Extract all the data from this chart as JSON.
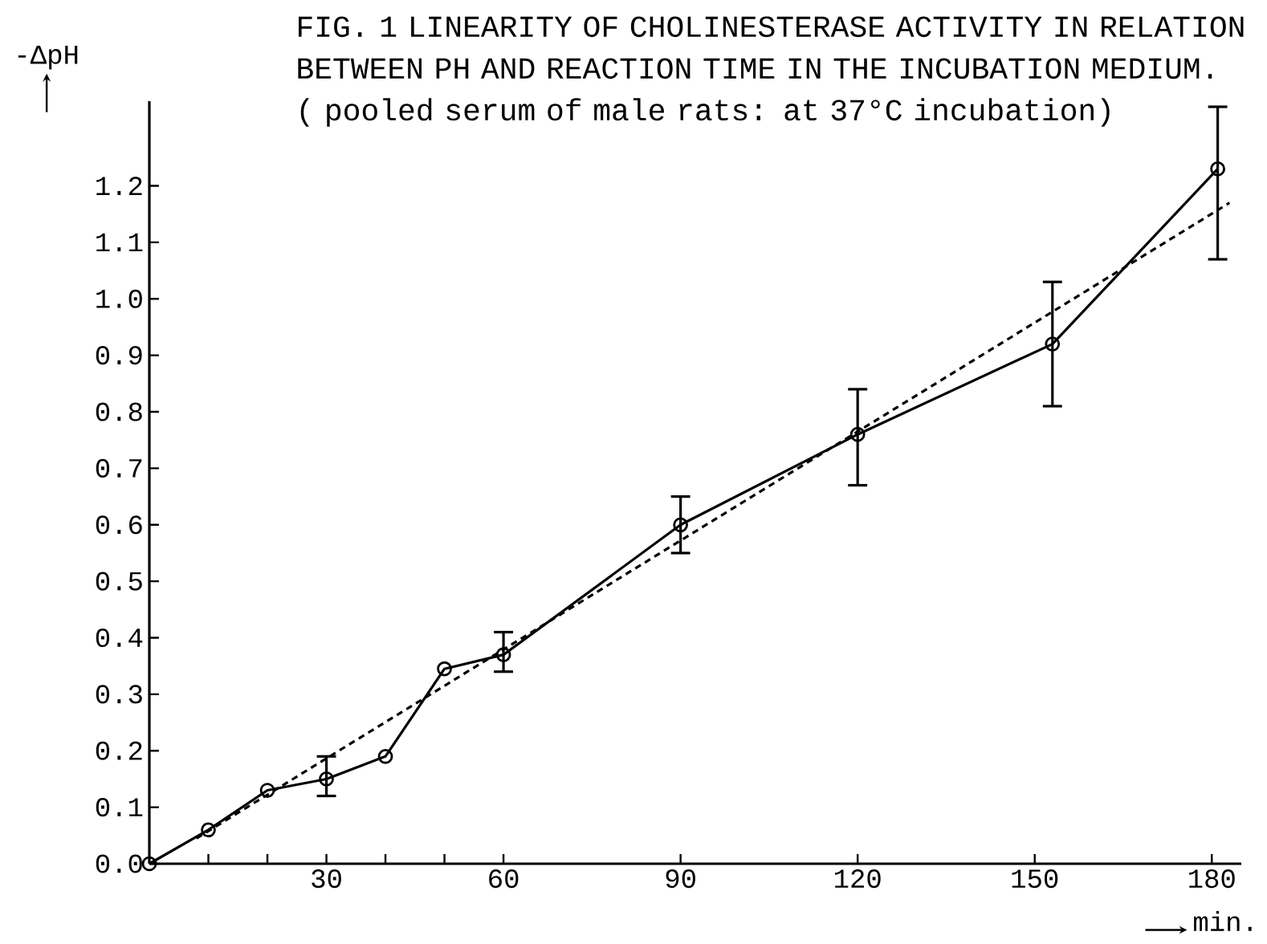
{
  "chart_data": {
    "type": "line",
    "title": "FIG. 1 LINEARITY OF CHOLINESTERASE ACTIVITY IN RELATION BETWEEN PH AND REACTION TIME IN THE INCUBATION MEDIUM.",
    "subtitle": "( pooled serum of male rats: at 37°C incubation)",
    "xlabel": "min.",
    "ylabel": "-ΔpH",
    "xlim": [
      0,
      185
    ],
    "ylim": [
      0,
      1.35
    ],
    "xticks": [
      {
        "value": 10,
        "label": null
      },
      {
        "value": 20,
        "label": null
      },
      30,
      {
        "value": 40,
        "label": null
      },
      {
        "value": 50,
        "label": null
      },
      60,
      90,
      120,
      150,
      180
    ],
    "yticks": [
      {
        "value": 0,
        "label": "0.0"
      },
      0.1,
      0.2,
      0.3,
      0.4,
      0.5,
      0.6,
      0.7,
      0.8,
      0.9,
      {
        "value": 1,
        "label": "1.0"
      },
      1.1,
      1.2
    ],
    "marker": "circle",
    "line_style": "solid",
    "series": [
      {
        "x": [
          0,
          10,
          20,
          30,
          40,
          50,
          60,
          90,
          120,
          153,
          181
        ],
        "values": [
          0,
          0.06,
          0.13,
          0.15,
          0.19,
          0.345,
          0.37,
          0.6,
          0.76,
          0.92,
          1.23
        ],
        "errors": [
          null,
          null,
          null,
          [
            0.12,
            0.19
          ],
          null,
          null,
          [
            0.34,
            0.41
          ],
          [
            0.55,
            0.65
          ],
          [
            0.67,
            0.84
          ],
          [
            0.81,
            1.03
          ],
          [
            1.07,
            1.34
          ]
        ],
        "color": "#000000"
      },
      {
        "x": [
          8,
          183
        ],
        "values": [
          0.045,
          1.17
        ],
        "color": "#000000",
        "marker": "none",
        "line_style": "dashed"
      }
    ]
  }
}
